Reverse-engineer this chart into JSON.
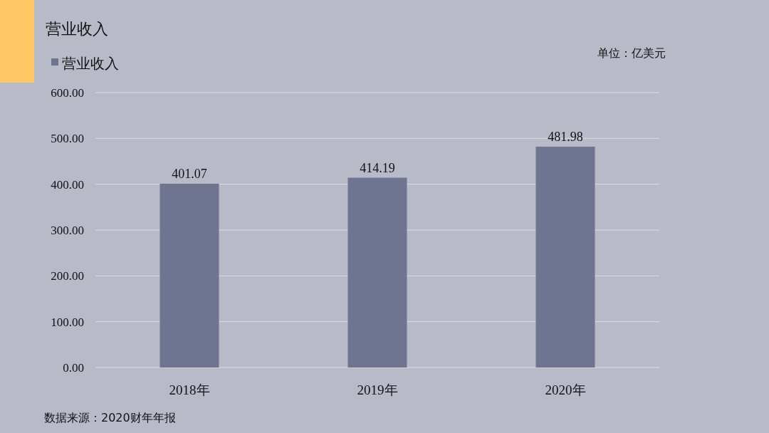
{
  "chart_data": {
    "type": "bar",
    "title": "营业收入",
    "ylabel": "单位：亿美元",
    "categories": [
      "2018年",
      "2019年",
      "2020年"
    ],
    "series": [
      {
        "name": "营业收入",
        "color": "#6f7590",
        "values": [
          401.07,
          414.19,
          481.98
        ]
      }
    ],
    "ylim": [
      0,
      600
    ],
    "yticks": [
      {
        "value": 0,
        "label": "0.00"
      },
      {
        "value": 100,
        "label": "100.00"
      },
      {
        "value": 200,
        "label": "200.00"
      },
      {
        "value": 300,
        "label": "300.00"
      },
      {
        "value": 400,
        "label": "400.00"
      },
      {
        "value": 500,
        "label": "500.00"
      },
      {
        "value": 600,
        "label": "600.00"
      }
    ],
    "grid": "y",
    "legend": "top left",
    "data_labels": true,
    "annotations": [
      "数据来源：2020财年年报"
    ]
  }
}
